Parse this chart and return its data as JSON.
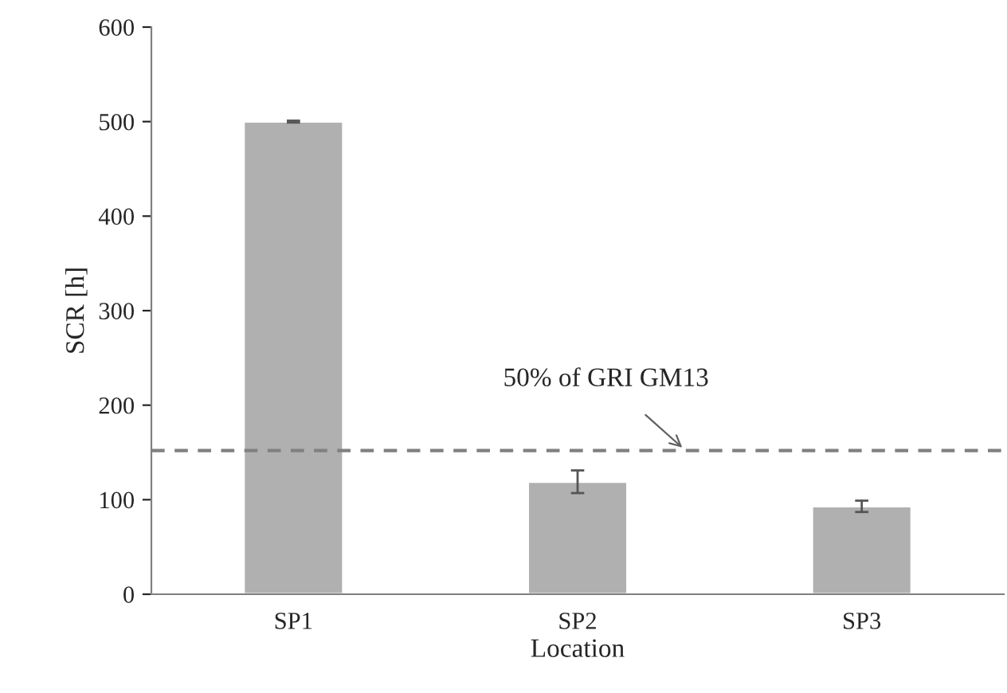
{
  "chart_data": {
    "type": "bar",
    "xlabel": "Location",
    "ylabel": "SCR [h]",
    "categories": [
      "SP1",
      "SP2",
      "SP3"
    ],
    "values": [
      500,
      119,
      93
    ],
    "errors": [
      1,
      12,
      6
    ],
    "color": "#b0b0b0",
    "ylim": [
      0,
      600
    ],
    "yticks": [
      0,
      100,
      200,
      300,
      400,
      500,
      600
    ],
    "ref_lines": [
      {
        "axis": "y",
        "value": 152,
        "label": "50% of GRI GM13",
        "color": "#808080",
        "line_style": "dashed"
      }
    ],
    "grid": false,
    "legend": false
  }
}
